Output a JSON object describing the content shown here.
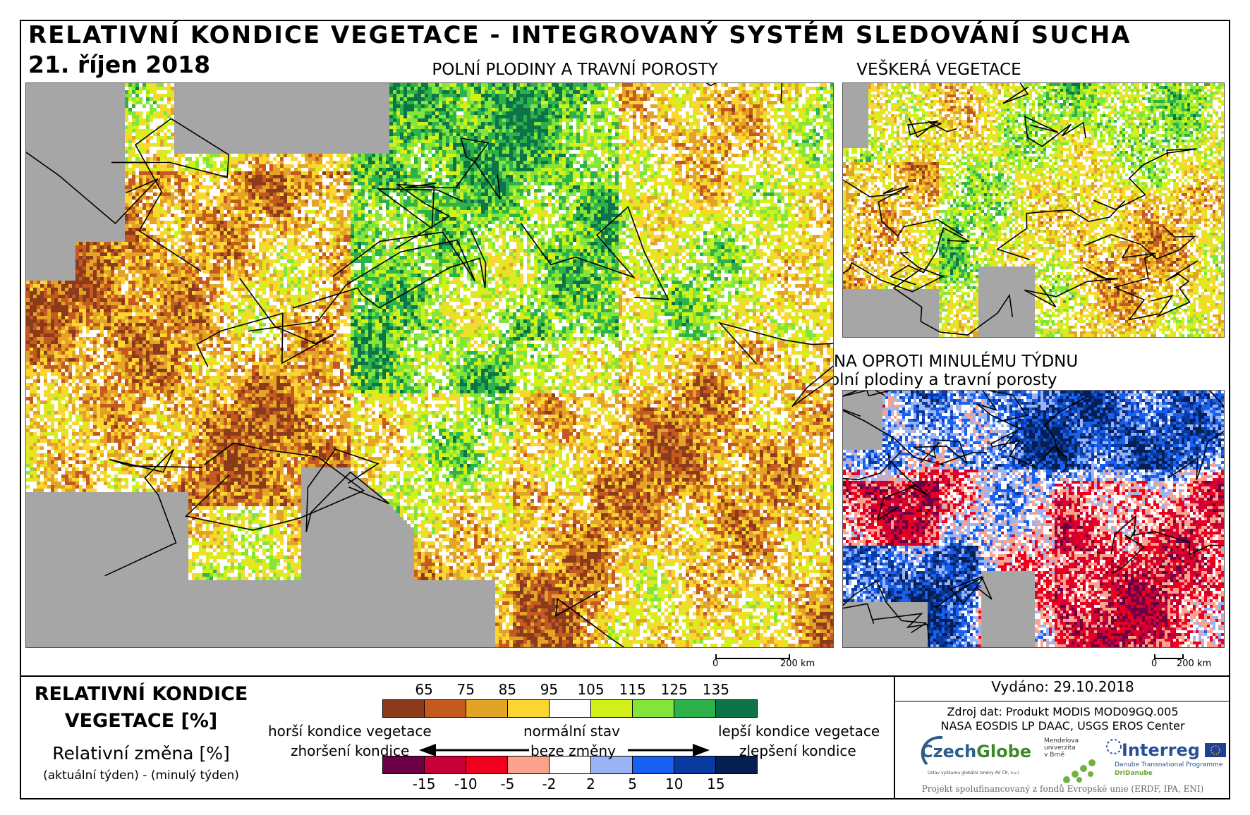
{
  "header": {
    "title": "RELATIVNÍ KONDICE VEGETACE - INTEGROVANÝ SYSTÉM SLEDOVÁNÍ SUCHA",
    "date": "21. říjen 2018"
  },
  "maps": {
    "main_label": "POLNÍ PLODINY A TRAVNÍ POROSTY",
    "top_right_label": "VEŠKERÁ VEGETACE",
    "bottom_right_label_1": "ZMĚNA OPROTI MINULÉMU TÝDNU",
    "bottom_right_label_2": "polní plodiny a travní porosty"
  },
  "scalebar": {
    "zero": "0",
    "distance": "200 km"
  },
  "legend": {
    "title_1": "RELATIVNÍ KONDICE",
    "title_2": "VEGETACE [%]",
    "sub_1": "Relativní změna [%]",
    "sub_2": "(aktuální týden) - (minulý týden)",
    "condition_ticks": [
      "65",
      "75",
      "85",
      "95",
      "105",
      "115",
      "125",
      "135"
    ],
    "condition_colors": [
      "#8b3a1c",
      "#c45a1f",
      "#e3a327",
      "#f9d630",
      "#ffffff",
      "#d4f019",
      "#83e43a",
      "#2db24b",
      "#0c7448"
    ],
    "change_ticks": [
      "-15",
      "-10",
      "-5",
      "-2",
      "2",
      "5",
      "10",
      "15"
    ],
    "change_colors": [
      "#6b0045",
      "#c8003a",
      "#f0001d",
      "#fba38c",
      "#ffffff",
      "#99b3f5",
      "#1760f0",
      "#0a3aa0",
      "#071e52"
    ],
    "worse_condition": "horší kondice vegetace",
    "normal_state": "normální stav",
    "better_condition": "lepší kondice vegetace",
    "deterioration": "zhoršení kondice",
    "no_change": "beze změny",
    "improvement": "zlepšení kondice"
  },
  "info": {
    "issued": "Vydáno: 29.10.2018",
    "source_1": "Zdroj dat: Produkt MODIS MOD09GQ.005",
    "source_2": "NASA EOSDIS LP DAAC, USGS EROS Center",
    "logo_czechglobe_a": "Czech",
    "logo_czechglobe_b": "Globe",
    "logo_czechglobe_sub": "Ústav výzkumu globální změny AV ČR, v.v.i.",
    "logo_mendel_1": "Mendelova",
    "logo_mendel_2": "univerzita",
    "logo_mendel_3": "v Brně",
    "logo_interreg": "Interreg",
    "logo_interreg_sub": "Danube Transnational Programme",
    "logo_interreg_sub2": "DriDanube",
    "footer": "Projekt spolufinancovaný z fondů Evropské unie (ERDF, IPA, ENI)"
  }
}
